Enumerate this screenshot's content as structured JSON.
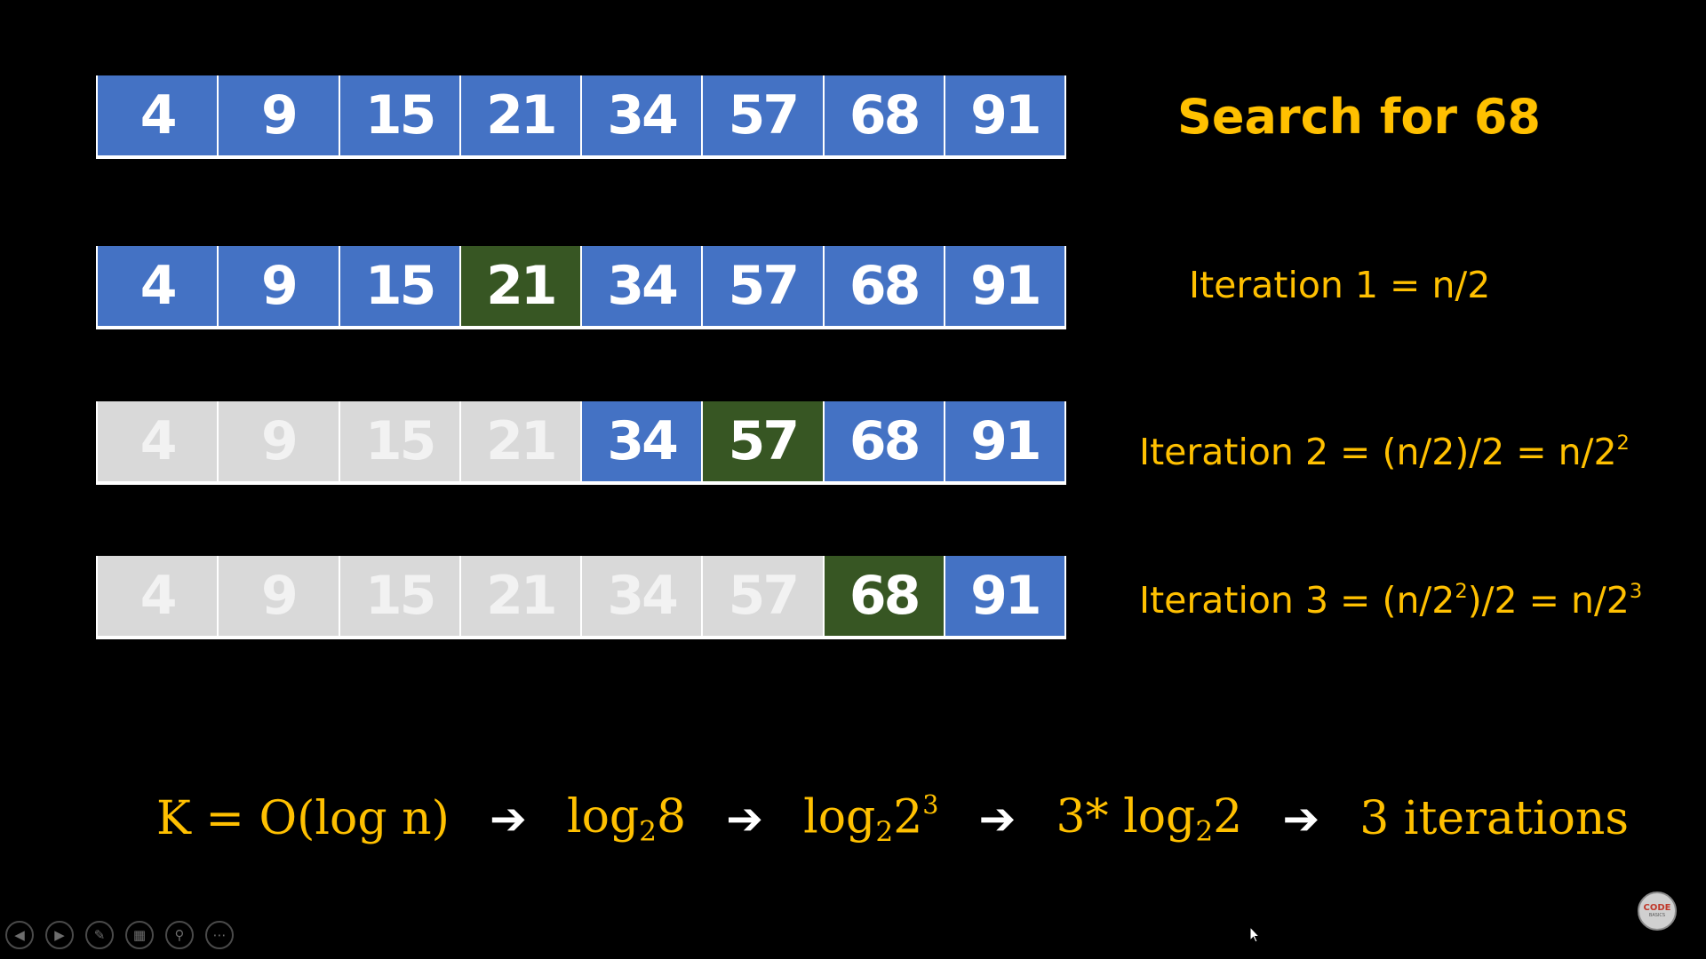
{
  "arrays": [
    {
      "cells": [
        {
          "value": "4",
          "state": "blue"
        },
        {
          "value": "9",
          "state": "blue"
        },
        {
          "value": "15",
          "state": "blue"
        },
        {
          "value": "21",
          "state": "blue"
        },
        {
          "value": "34",
          "state": "blue"
        },
        {
          "value": "57",
          "state": "blue"
        },
        {
          "value": "68",
          "state": "blue"
        },
        {
          "value": "91",
          "state": "blue"
        }
      ]
    },
    {
      "cells": [
        {
          "value": "4",
          "state": "blue"
        },
        {
          "value": "9",
          "state": "blue"
        },
        {
          "value": "15",
          "state": "blue"
        },
        {
          "value": "21",
          "state": "green"
        },
        {
          "value": "34",
          "state": "blue"
        },
        {
          "value": "57",
          "state": "blue"
        },
        {
          "value": "68",
          "state": "blue"
        },
        {
          "value": "91",
          "state": "blue"
        }
      ]
    },
    {
      "cells": [
        {
          "value": "4",
          "state": "gray"
        },
        {
          "value": "9",
          "state": "gray"
        },
        {
          "value": "15",
          "state": "gray"
        },
        {
          "value": "21",
          "state": "gray"
        },
        {
          "value": "34",
          "state": "blue"
        },
        {
          "value": "57",
          "state": "green"
        },
        {
          "value": "68",
          "state": "blue"
        },
        {
          "value": "91",
          "state": "blue"
        }
      ]
    },
    {
      "cells": [
        {
          "value": "4",
          "state": "gray"
        },
        {
          "value": "9",
          "state": "gray"
        },
        {
          "value": "15",
          "state": "gray"
        },
        {
          "value": "21",
          "state": "gray"
        },
        {
          "value": "34",
          "state": "gray"
        },
        {
          "value": "57",
          "state": "gray"
        },
        {
          "value": "68",
          "state": "green"
        },
        {
          "value": "91",
          "state": "blue"
        }
      ]
    }
  ],
  "labels": {
    "search": "Search for 68",
    "iter1": "Iteration 1 = n/2",
    "iter2_main": "Iteration 2 = (n/2)/2 = n/2",
    "iter2_sup": "2",
    "iter3_a": "Iteration 3 = (n/2",
    "iter3_sup1": "2",
    "iter3_b": ")/2 = n/2",
    "iter3_sup2": "3"
  },
  "formula": {
    "t1": "K = O(log n)",
    "t2_log": "log",
    "t2_base": "2",
    "t2_arg": "8",
    "t3_log": "log",
    "t3_base": "2",
    "t3_arg": "2",
    "t3_exp": "3",
    "t4_pre": "3* log",
    "t4_base": "2",
    "t4_arg": "2",
    "t5": "3 iterations",
    "arrow": "➔"
  },
  "colors": {
    "blue": "#4472c4",
    "green": "#375623",
    "gray": "#d9d9d9",
    "accent": "#ffc000"
  },
  "toolbar": {
    "prev_icon": "◀",
    "next_icon": "▶",
    "pen_icon": "✎",
    "slides_icon": "▦",
    "zoom_icon": "⚲",
    "more_icon": "⋯"
  },
  "logo": {
    "line1": "CODE",
    "line2": "BASICS"
  }
}
